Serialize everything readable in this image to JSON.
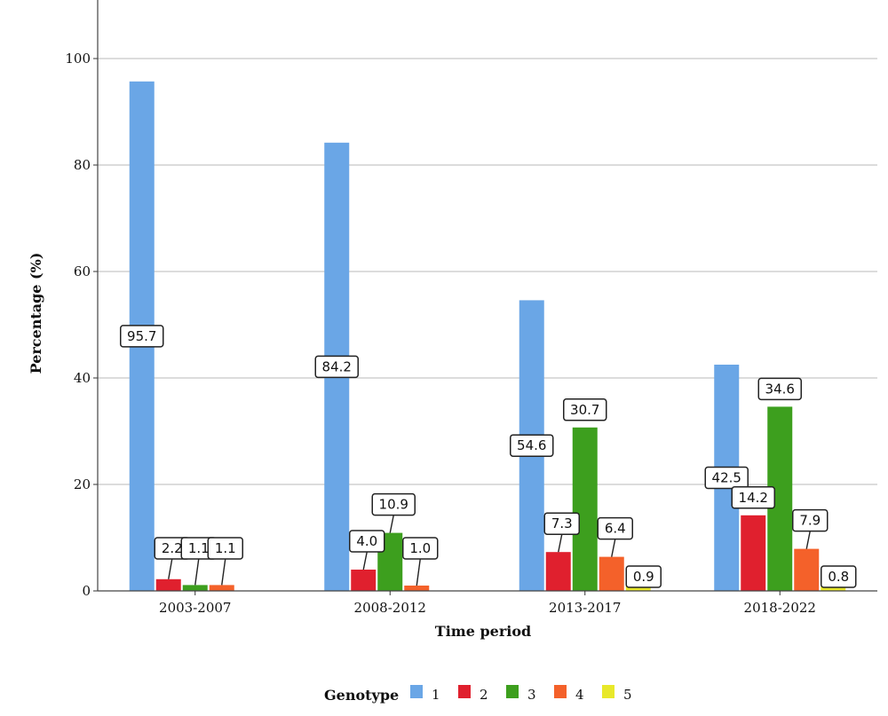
{
  "chart_data": {
    "type": "bar",
    "categories": [
      "2003-2007",
      "2008-2012",
      "2013-2017",
      "2018-2022"
    ],
    "series": [
      {
        "name": "1",
        "color": "#6aa6e6",
        "values": [
          95.7,
          84.2,
          54.6,
          42.5
        ]
      },
      {
        "name": "2",
        "color": "#e0202e",
        "values": [
          2.2,
          4.0,
          7.3,
          14.2
        ]
      },
      {
        "name": "3",
        "color": "#3d9f1e",
        "values": [
          1.1,
          10.9,
          30.7,
          34.6
        ]
      },
      {
        "name": "4",
        "color": "#f4612a",
        "values": [
          1.1,
          1.0,
          6.4,
          7.9
        ]
      },
      {
        "name": "5",
        "color": "#e8e82a",
        "values": [
          null,
          null,
          0.9,
          0.8
        ]
      }
    ],
    "data_labels": [
      [
        "95.7",
        "84.2",
        "54.6",
        "42.5"
      ],
      [
        "2.2",
        "4.0",
        "7.3",
        "14.2"
      ],
      [
        "1.1",
        "10.9",
        "30.7",
        "34.6"
      ],
      [
        "1.1",
        "1.0",
        "6.4",
        "7.9"
      ],
      [
        "",
        "",
        "0.9",
        "0.8"
      ]
    ],
    "xlabel": "Time period",
    "ylabel": "Percentage (%)",
    "ylim": [
      0,
      110
    ],
    "yticks": [
      0,
      20,
      40,
      60,
      80,
      100
    ],
    "grid": true,
    "legend": {
      "title": "Genotype",
      "placement": "bottom"
    }
  }
}
